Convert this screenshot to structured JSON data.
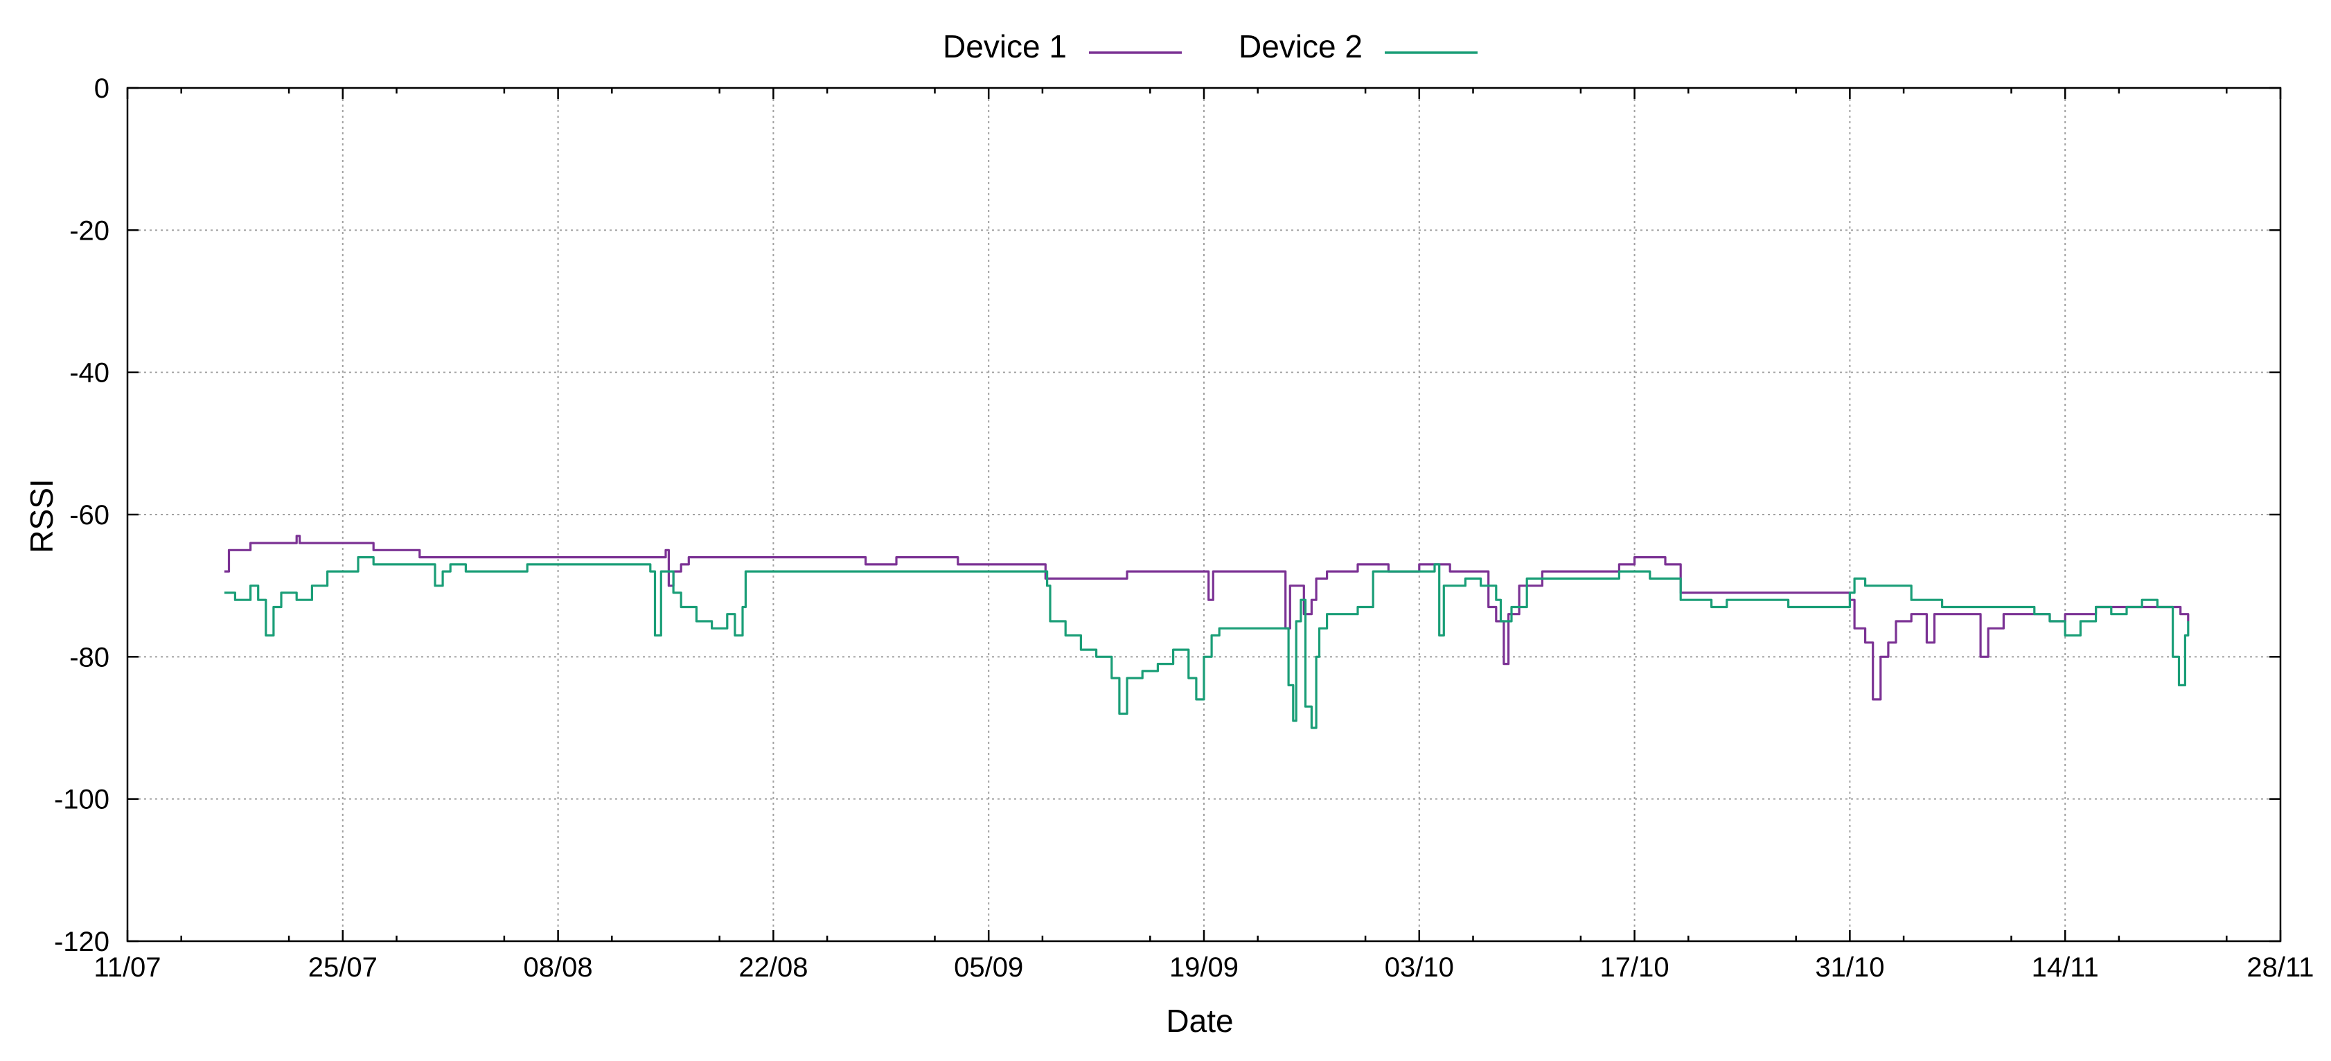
{
  "chart_data": {
    "type": "line",
    "title": "",
    "xlabel": "Date",
    "ylabel": "RSSI",
    "xlim": [
      0,
      140
    ],
    "ylim": [
      -120,
      0
    ],
    "grid": true,
    "legend_position": "top-center",
    "x_ticks": [
      {
        "x": 0,
        "label": "11/07"
      },
      {
        "x": 14,
        "label": "25/07"
      },
      {
        "x": 28,
        "label": "08/08"
      },
      {
        "x": 42,
        "label": "22/08"
      },
      {
        "x": 56,
        "label": "05/09"
      },
      {
        "x": 70,
        "label": "19/09"
      },
      {
        "x": 84,
        "label": "03/10"
      },
      {
        "x": 98,
        "label": "17/10"
      },
      {
        "x": 112,
        "label": "31/10"
      },
      {
        "x": 126,
        "label": "14/11"
      },
      {
        "x": 140,
        "label": "28/11"
      }
    ],
    "y_ticks": [
      {
        "y": 0,
        "label": "0"
      },
      {
        "y": -20,
        "label": "-20"
      },
      {
        "y": -40,
        "label": "-40"
      },
      {
        "y": -60,
        "label": "-60"
      },
      {
        "y": -80,
        "label": "-80"
      },
      {
        "y": -100,
        "label": "-100"
      },
      {
        "y": -120,
        "label": "-120"
      }
    ],
    "series": [
      {
        "name": "Device 1",
        "color": "#7b3294",
        "points": [
          [
            6.3,
            -68
          ],
          [
            6.6,
            -65
          ],
          [
            7,
            -65
          ],
          [
            8,
            -64
          ],
          [
            9,
            -64
          ],
          [
            10,
            -64
          ],
          [
            11,
            -63
          ],
          [
            11.2,
            -64
          ],
          [
            12,
            -64
          ],
          [
            13,
            -64
          ],
          [
            14,
            -64
          ],
          [
            15,
            -64
          ],
          [
            16,
            -65
          ],
          [
            16.5,
            -65
          ],
          [
            18,
            -65
          ],
          [
            19,
            -66
          ],
          [
            20,
            -66
          ],
          [
            22,
            -66
          ],
          [
            24,
            -66
          ],
          [
            25,
            -66
          ],
          [
            27,
            -66
          ],
          [
            28,
            -66
          ],
          [
            30,
            -66
          ],
          [
            32,
            -66
          ],
          [
            34,
            -66
          ],
          [
            35,
            -65
          ],
          [
            35.2,
            -70
          ],
          [
            35.5,
            -68
          ],
          [
            36,
            -67
          ],
          [
            36.5,
            -66
          ],
          [
            38,
            -66
          ],
          [
            40,
            -66
          ],
          [
            42,
            -66
          ],
          [
            44,
            -66
          ],
          [
            46,
            -66
          ],
          [
            48,
            -67
          ],
          [
            50,
            -66
          ],
          [
            52,
            -66
          ],
          [
            54,
            -67
          ],
          [
            56,
            -67
          ],
          [
            58,
            -67
          ],
          [
            59.5,
            -67
          ],
          [
            59.7,
            -69
          ],
          [
            61,
            -69
          ],
          [
            63,
            -69
          ],
          [
            64,
            -69
          ],
          [
            65,
            -68
          ],
          [
            66,
            -68
          ],
          [
            67,
            -68
          ],
          [
            68,
            -68
          ],
          [
            69,
            -68
          ],
          [
            70,
            -68
          ],
          [
            70.3,
            -72
          ],
          [
            70.6,
            -68
          ],
          [
            72,
            -68
          ],
          [
            74,
            -68
          ],
          [
            75,
            -68
          ],
          [
            75.3,
            -76
          ],
          [
            75.6,
            -70
          ],
          [
            76.2,
            -70
          ],
          [
            76.5,
            -74
          ],
          [
            77,
            -72
          ],
          [
            77.3,
            -69
          ],
          [
            78,
            -68
          ],
          [
            79,
            -68
          ],
          [
            80,
            -67
          ],
          [
            81,
            -67
          ],
          [
            82,
            -68
          ],
          [
            83,
            -68
          ],
          [
            84,
            -67
          ],
          [
            85,
            -67
          ],
          [
            86,
            -68
          ],
          [
            88,
            -68
          ],
          [
            88.5,
            -73
          ],
          [
            89,
            -75
          ],
          [
            89.5,
            -81
          ],
          [
            89.8,
            -74
          ],
          [
            90.5,
            -70
          ],
          [
            91,
            -70
          ],
          [
            92,
            -68
          ],
          [
            94,
            -68
          ],
          [
            96,
            -68
          ],
          [
            97,
            -67
          ],
          [
            98,
            -66
          ],
          [
            99,
            -66
          ],
          [
            100,
            -67
          ],
          [
            101,
            -71
          ],
          [
            103,
            -71
          ],
          [
            105,
            -71
          ],
          [
            107,
            -71
          ],
          [
            109,
            -71
          ],
          [
            110,
            -71
          ],
          [
            111,
            -71
          ],
          [
            112,
            -72
          ],
          [
            112.3,
            -76
          ],
          [
            113,
            -78
          ],
          [
            113.5,
            -86
          ],
          [
            114,
            -80
          ],
          [
            114.5,
            -78
          ],
          [
            115,
            -75
          ],
          [
            116,
            -74
          ],
          [
            117,
            -78
          ],
          [
            117.5,
            -74
          ],
          [
            118,
            -74
          ],
          [
            120,
            -74
          ],
          [
            120.5,
            -80
          ],
          [
            121,
            -76
          ],
          [
            122,
            -74
          ],
          [
            124,
            -74
          ],
          [
            125,
            -75
          ],
          [
            126,
            -74
          ],
          [
            128,
            -73
          ],
          [
            129,
            -73
          ],
          [
            130,
            -73
          ],
          [
            132,
            -73
          ],
          [
            133,
            -73
          ],
          [
            133.5,
            -74
          ],
          [
            134,
            -75
          ]
        ]
      },
      {
        "name": "Device 2",
        "color": "#1a9e77",
        "points": [
          [
            6.3,
            -71
          ],
          [
            7,
            -72
          ],
          [
            8,
            -70
          ],
          [
            8.5,
            -72
          ],
          [
            9,
            -77
          ],
          [
            9.5,
            -73
          ],
          [
            10,
            -71
          ],
          [
            11,
            -72
          ],
          [
            12,
            -70
          ],
          [
            13,
            -68
          ],
          [
            14,
            -68
          ],
          [
            15,
            -66
          ],
          [
            16,
            -67
          ],
          [
            17,
            -67
          ],
          [
            18,
            -67
          ],
          [
            19,
            -67
          ],
          [
            20,
            -70
          ],
          [
            20.5,
            -68
          ],
          [
            21,
            -67
          ],
          [
            22,
            -68
          ],
          [
            24,
            -68
          ],
          [
            25,
            -68
          ],
          [
            26,
            -67
          ],
          [
            28,
            -67
          ],
          [
            30,
            -67
          ],
          [
            32,
            -67
          ],
          [
            34,
            -68
          ],
          [
            34.3,
            -77
          ],
          [
            34.7,
            -68
          ],
          [
            35,
            -68
          ],
          [
            35.5,
            -71
          ],
          [
            36,
            -73
          ],
          [
            37,
            -75
          ],
          [
            38,
            -76
          ],
          [
            39,
            -74
          ],
          [
            39.5,
            -77
          ],
          [
            40,
            -73
          ],
          [
            40.2,
            -68
          ],
          [
            42,
            -68
          ],
          [
            44,
            -68
          ],
          [
            46,
            -68
          ],
          [
            48,
            -68
          ],
          [
            50,
            -68
          ],
          [
            52,
            -68
          ],
          [
            54,
            -68
          ],
          [
            56,
            -68
          ],
          [
            58,
            -68
          ],
          [
            59.5,
            -68
          ],
          [
            59.8,
            -70
          ],
          [
            60,
            -75
          ],
          [
            61,
            -77
          ],
          [
            62,
            -79
          ],
          [
            63,
            -80
          ],
          [
            64,
            -83
          ],
          [
            64.5,
            -88
          ],
          [
            65,
            -83
          ],
          [
            66,
            -82
          ],
          [
            67,
            -81
          ],
          [
            68,
            -79
          ],
          [
            69,
            -83
          ],
          [
            69.5,
            -86
          ],
          [
            70,
            -80
          ],
          [
            70.5,
            -77
          ],
          [
            71,
            -76
          ],
          [
            72,
            -76
          ],
          [
            73,
            -76
          ],
          [
            74,
            -76
          ],
          [
            75,
            -76
          ],
          [
            75.5,
            -84
          ],
          [
            75.8,
            -89
          ],
          [
            76,
            -75
          ],
          [
            76.3,
            -72
          ],
          [
            76.6,
            -87
          ],
          [
            77,
            -90
          ],
          [
            77.3,
            -80
          ],
          [
            77.5,
            -76
          ],
          [
            78,
            -74
          ],
          [
            79,
            -74
          ],
          [
            80,
            -73
          ],
          [
            81,
            -68
          ],
          [
            82,
            -68
          ],
          [
            83,
            -68
          ],
          [
            84,
            -68
          ],
          [
            85,
            -67
          ],
          [
            85.3,
            -77
          ],
          [
            85.6,
            -70
          ],
          [
            86,
            -70
          ],
          [
            87,
            -69
          ],
          [
            88,
            -70
          ],
          [
            89,
            -72
          ],
          [
            89.3,
            -75
          ],
          [
            90,
            -73
          ],
          [
            91,
            -69
          ],
          [
            92,
            -69
          ],
          [
            94,
            -69
          ],
          [
            96,
            -69
          ],
          [
            97,
            -68
          ],
          [
            98,
            -68
          ],
          [
            99,
            -69
          ],
          [
            100,
            -69
          ],
          [
            101,
            -72
          ],
          [
            102,
            -72
          ],
          [
            103,
            -73
          ],
          [
            104,
            -72
          ],
          [
            106,
            -72
          ],
          [
            108,
            -73
          ],
          [
            110,
            -73
          ],
          [
            111,
            -73
          ],
          [
            112,
            -71
          ],
          [
            112.3,
            -69
          ],
          [
            113,
            -70
          ],
          [
            114,
            -70
          ],
          [
            115,
            -70
          ],
          [
            116,
            -72
          ],
          [
            117,
            -72
          ],
          [
            118,
            -73
          ],
          [
            120,
            -73
          ],
          [
            122,
            -73
          ],
          [
            124,
            -74
          ],
          [
            125,
            -75
          ],
          [
            126,
            -77
          ],
          [
            127,
            -75
          ],
          [
            128,
            -73
          ],
          [
            129,
            -74
          ],
          [
            130,
            -73
          ],
          [
            131,
            -72
          ],
          [
            132,
            -73
          ],
          [
            133,
            -80
          ],
          [
            133.4,
            -84
          ],
          [
            133.8,
            -77
          ],
          [
            134,
            -75
          ]
        ]
      }
    ]
  }
}
